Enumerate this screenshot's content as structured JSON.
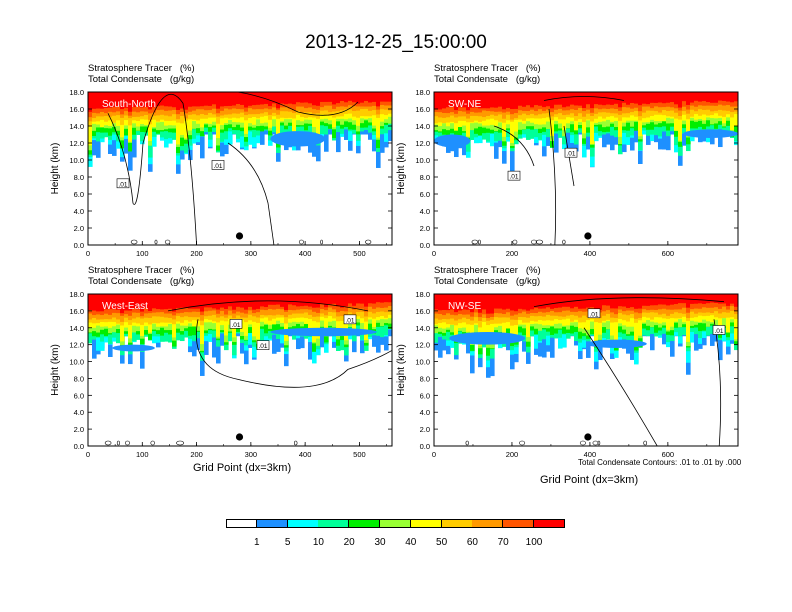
{
  "title": "2013-12-25_15:00:00",
  "panel_title_line1": "Stratosphere Tracer   (%)",
  "panel_title_line2": "Total Condensate   (g/kg)",
  "y_axis_label": "Height (km)",
  "x_axis_label": "Grid Point (dx=3km)",
  "contour_note": "Total Condensate Contours: .01 to .01 by .000",
  "contour_label": ".01",
  "colors": {
    "bins": [
      "#ffffff",
      "#1e90ff",
      "#00ffff",
      "#00ff99",
      "#00ee00",
      "#99ff33",
      "#ffff00",
      "#ffcc00",
      "#ff9900",
      "#ff5500",
      "#ff0000"
    ]
  },
  "legend": {
    "labels": [
      "1",
      "5",
      "10",
      "20",
      "30",
      "40",
      "50",
      "60",
      "70",
      "100"
    ]
  },
  "chart_data": [
    {
      "type": "heatmap",
      "label": "South-North",
      "xlabel": "",
      "ylabel": "Height (km)",
      "xlim": [
        0,
        560
      ],
      "ylim": [
        0,
        18
      ],
      "xticks": [
        "0",
        "100",
        "200",
        "300",
        "400",
        "500"
      ],
      "yticks": [
        "0.0",
        "2.0",
        "4.0",
        "6.0",
        "8.0",
        "10.0",
        "12.0",
        "14.0",
        "16.0",
        "18.0"
      ],
      "marker_x": 279
    },
    {
      "type": "heatmap",
      "label": "SW-NE",
      "xlabel": "",
      "ylabel": "Height (km)",
      "xlim": [
        0,
        780
      ],
      "ylim": [
        0,
        18
      ],
      "xticks": [
        "0",
        "200",
        "400",
        "600"
      ],
      "yticks": [
        "0.0",
        "2.0",
        "4.0",
        "6.0",
        "8.0",
        "10.0",
        "12.0",
        "14.0",
        "16.0",
        "18.0"
      ],
      "marker_x": 395
    },
    {
      "type": "heatmap",
      "label": "West-East",
      "xlabel": "Grid Point (dx=3km)",
      "ylabel": "Height (km)",
      "xlim": [
        0,
        560
      ],
      "ylim": [
        0,
        18
      ],
      "xticks": [
        "0",
        "100",
        "200",
        "300",
        "400",
        "500"
      ],
      "yticks": [
        "0.0",
        "2.0",
        "4.0",
        "6.0",
        "8.0",
        "10.0",
        "12.0",
        "14.0",
        "16.0",
        "18.0"
      ],
      "marker_x": 279
    },
    {
      "type": "heatmap",
      "label": "NW-SE",
      "xlabel": "Grid Point (dx=3km)",
      "ylabel": "Height (km)",
      "xlim": [
        0,
        780
      ],
      "ylim": [
        0,
        18
      ],
      "xticks": [
        "0",
        "200",
        "400",
        "600"
      ],
      "yticks": [
        "0.0",
        "2.0",
        "4.0",
        "6.0",
        "8.0",
        "10.0",
        "12.0",
        "14.0",
        "16.0",
        "18.0"
      ],
      "marker_x": 395
    }
  ]
}
